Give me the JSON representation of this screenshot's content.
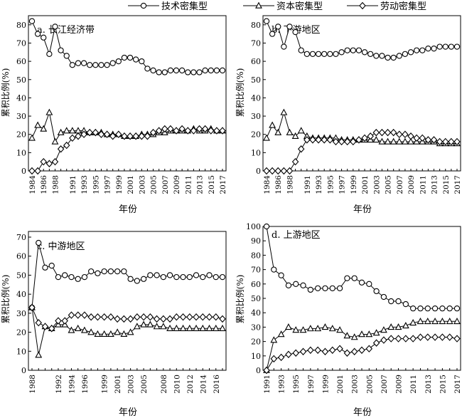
{
  "legend": {
    "position": "top-center",
    "items": [
      {
        "label": "技术密集型",
        "marker": "circle"
      },
      {
        "label": "资本密集型",
        "marker": "triangle"
      },
      {
        "label": "劳动密集型",
        "marker": "diamond"
      }
    ]
  },
  "colors": {
    "line": "#000000",
    "marker_fill": "#ffffff"
  },
  "chart_data": [
    {
      "type": "line",
      "title": "a. 长江经济带",
      "xlabel": "年份",
      "ylabel": "累积比例(%)",
      "ylim": [
        0,
        85
      ],
      "yticks": [
        0,
        10,
        20,
        30,
        40,
        50,
        60,
        70,
        80
      ],
      "x": [
        1984,
        1985,
        1986,
        1987,
        1988,
        1989,
        1990,
        1991,
        1992,
        1993,
        1994,
        1995,
        1996,
        1997,
        1998,
        1999,
        2000,
        2001,
        2002,
        2003,
        2004,
        2005,
        2006,
        2007,
        2008,
        2009,
        2010,
        2011,
        2012,
        2013,
        2014,
        2015,
        2016,
        2017
      ],
      "xticks": [
        "1984",
        "1986",
        "1988",
        "1991",
        "1993",
        "1995",
        "1997",
        "1999",
        "2001",
        "2003",
        "2005",
        "2007",
        "2009",
        "2011",
        "2013",
        "2015",
        "2017"
      ],
      "series": [
        {
          "name": "技术密集型",
          "marker": "circle",
          "values": [
            82,
            75,
            73,
            64,
            79,
            66,
            63,
            58,
            59,
            59,
            58,
            58,
            58,
            58,
            59,
            60,
            62,
            62,
            61,
            60,
            56,
            55,
            54,
            54,
            55,
            55,
            55,
            54,
            54,
            54,
            55,
            55,
            55,
            55
          ]
        },
        {
          "name": "资本密集型",
          "marker": "triangle",
          "values": [
            18,
            25,
            23,
            32,
            16,
            21,
            22,
            22,
            22,
            22,
            21,
            21,
            21,
            20,
            20,
            20,
            19,
            19,
            19,
            20,
            20,
            20,
            21,
            21,
            22,
            22,
            22,
            22,
            23,
            22,
            22,
            23,
            22,
            22
          ]
        },
        {
          "name": "劳动密集型",
          "marker": "diamond",
          "values": [
            0,
            0,
            5,
            4,
            5,
            12,
            14,
            18,
            19,
            20,
            21,
            21,
            20,
            20,
            19,
            20,
            19,
            19,
            19,
            19,
            19,
            21,
            22,
            23,
            23,
            22,
            23,
            22,
            22,
            23,
            23,
            22,
            22,
            22
          ]
        }
      ]
    },
    {
      "type": "line",
      "title": "b. 下游地区",
      "xlabel": "年份",
      "ylabel": "累积比例(%)",
      "ylim": [
        0,
        85
      ],
      "yticks": [
        0,
        10,
        20,
        30,
        40,
        50,
        60,
        70,
        80
      ],
      "x": [
        1984,
        1985,
        1986,
        1987,
        1988,
        1989,
        1990,
        1991,
        1992,
        1993,
        1994,
        1995,
        1996,
        1997,
        1998,
        1999,
        2000,
        2001,
        2002,
        2003,
        2004,
        2005,
        2006,
        2007,
        2008,
        2009,
        2010,
        2011,
        2012,
        2013,
        2014,
        2015,
        2016,
        2017
      ],
      "xticks": [
        "1984",
        "1986",
        "1988",
        "1991",
        "1993",
        "1995",
        "1997",
        "1999",
        "2001",
        "2003",
        "2005",
        "2007",
        "2009",
        "2011",
        "2013",
        "2015",
        "2017"
      ],
      "series": [
        {
          "name": "技术密集型",
          "marker": "circle",
          "values": [
            82,
            75,
            79,
            68,
            79,
            76,
            66,
            64,
            64,
            64,
            64,
            64,
            64,
            65,
            66,
            66,
            66,
            65,
            64,
            63,
            63,
            62,
            62,
            63,
            64,
            65,
            66,
            66,
            67,
            67,
            68,
            68,
            68,
            68
          ]
        },
        {
          "name": "资本密集型",
          "marker": "triangle",
          "values": [
            18,
            25,
            21,
            32,
            21,
            19,
            22,
            19,
            18,
            18,
            18,
            18,
            18,
            17,
            17,
            17,
            17,
            17,
            17,
            17,
            16,
            16,
            16,
            16,
            16,
            16,
            16,
            16,
            16,
            16,
            15,
            15,
            15,
            15
          ]
        },
        {
          "name": "劳动密集型",
          "marker": "diamond",
          "values": [
            0,
            0,
            0,
            0,
            0,
            5,
            12,
            17,
            17,
            17,
            17,
            17,
            16,
            16,
            16,
            16,
            17,
            18,
            19,
            21,
            21,
            21,
            21,
            20,
            20,
            19,
            18,
            18,
            17,
            17,
            16,
            16,
            16,
            16
          ]
        }
      ]
    },
    {
      "type": "line",
      "title": "c. 中游地区",
      "xlabel": "年份",
      "ylabel": "累积比例(%)",
      "ylim": [
        0,
        73
      ],
      "yticks": [
        0,
        10,
        20,
        30,
        40,
        50,
        60,
        70
      ],
      "x": [
        1988,
        1989,
        1990,
        1991,
        1992,
        1993,
        1994,
        1995,
        1996,
        1997,
        1998,
        1999,
        2000,
        2001,
        2002,
        2003,
        2004,
        2005,
        2006,
        2007,
        2008,
        2009,
        2010,
        2011,
        2012,
        2013,
        2014,
        2015,
        2016,
        2017
      ],
      "xticks": [
        "1988",
        "1992",
        "1994",
        "1996",
        "1999",
        "2001",
        "2003",
        "2005",
        "2008",
        "2010",
        "2012",
        "2014",
        "2016"
      ],
      "series": [
        {
          "name": "技术密集型",
          "marker": "circle",
          "values": [
            33,
            67,
            54,
            55,
            49,
            50,
            49,
            48,
            49,
            52,
            51,
            52,
            52,
            52,
            52,
            48,
            47,
            48,
            50,
            50,
            49,
            50,
            49,
            49,
            49,
            50,
            49,
            50,
            49,
            49
          ]
        },
        {
          "name": "资本密集型",
          "marker": "triangle",
          "values": [
            33,
            8,
            23,
            22,
            24,
            24,
            21,
            22,
            21,
            20,
            19,
            19,
            19,
            20,
            19,
            20,
            23,
            24,
            24,
            23,
            23,
            22,
            22,
            22,
            22,
            22,
            22,
            22,
            22,
            22
          ]
        },
        {
          "name": "劳动密集型",
          "marker": "diamond",
          "values": [
            33,
            25,
            23,
            22,
            26,
            26,
            29,
            29,
            29,
            28,
            28,
            28,
            28,
            27,
            27,
            27,
            28,
            28,
            28,
            27,
            27,
            27,
            28,
            28,
            28,
            28,
            28,
            28,
            28,
            27
          ]
        }
      ]
    },
    {
      "type": "line",
      "title": "d. 上游地区",
      "xlabel": "年份",
      "ylabel": "累积比例(%)",
      "ylim": [
        0,
        100
      ],
      "yticks": [
        0,
        10,
        20,
        30,
        40,
        50,
        60,
        70,
        80,
        90,
        100
      ],
      "x": [
        1991,
        1992,
        1993,
        1994,
        1995,
        1996,
        1997,
        1998,
        1999,
        2000,
        2001,
        2002,
        2003,
        2004,
        2005,
        2006,
        2007,
        2008,
        2009,
        2010,
        2011,
        2012,
        2013,
        2014,
        2015,
        2016,
        2017
      ],
      "xticks": [
        "1991",
        "1993",
        "1995",
        "1997",
        "1999",
        "2001",
        "2003",
        "2005",
        "2007",
        "2009",
        "2011",
        "2013",
        "2015",
        "2017"
      ],
      "series": [
        {
          "name": "技术密集型",
          "marker": "circle",
          "values": [
            100,
            70,
            66,
            59,
            60,
            59,
            56,
            57,
            57,
            57,
            57,
            64,
            64,
            61,
            60,
            55,
            51,
            48,
            48,
            46,
            43,
            43,
            43,
            43,
            43,
            43,
            43
          ]
        },
        {
          "name": "资本密集型",
          "marker": "triangle",
          "values": [
            0,
            21,
            25,
            30,
            28,
            28,
            29,
            29,
            30,
            29,
            28,
            24,
            23,
            25,
            25,
            26,
            28,
            30,
            30,
            31,
            33,
            34,
            34,
            34,
            34,
            34,
            34
          ]
        },
        {
          "name": "劳动密集型",
          "marker": "diamond",
          "values": [
            0,
            8,
            9,
            11,
            12,
            13,
            14,
            14,
            13,
            14,
            15,
            12,
            13,
            14,
            15,
            19,
            21,
            22,
            22,
            22,
            22,
            23,
            23,
            23,
            23,
            23,
            22
          ]
        }
      ]
    }
  ]
}
